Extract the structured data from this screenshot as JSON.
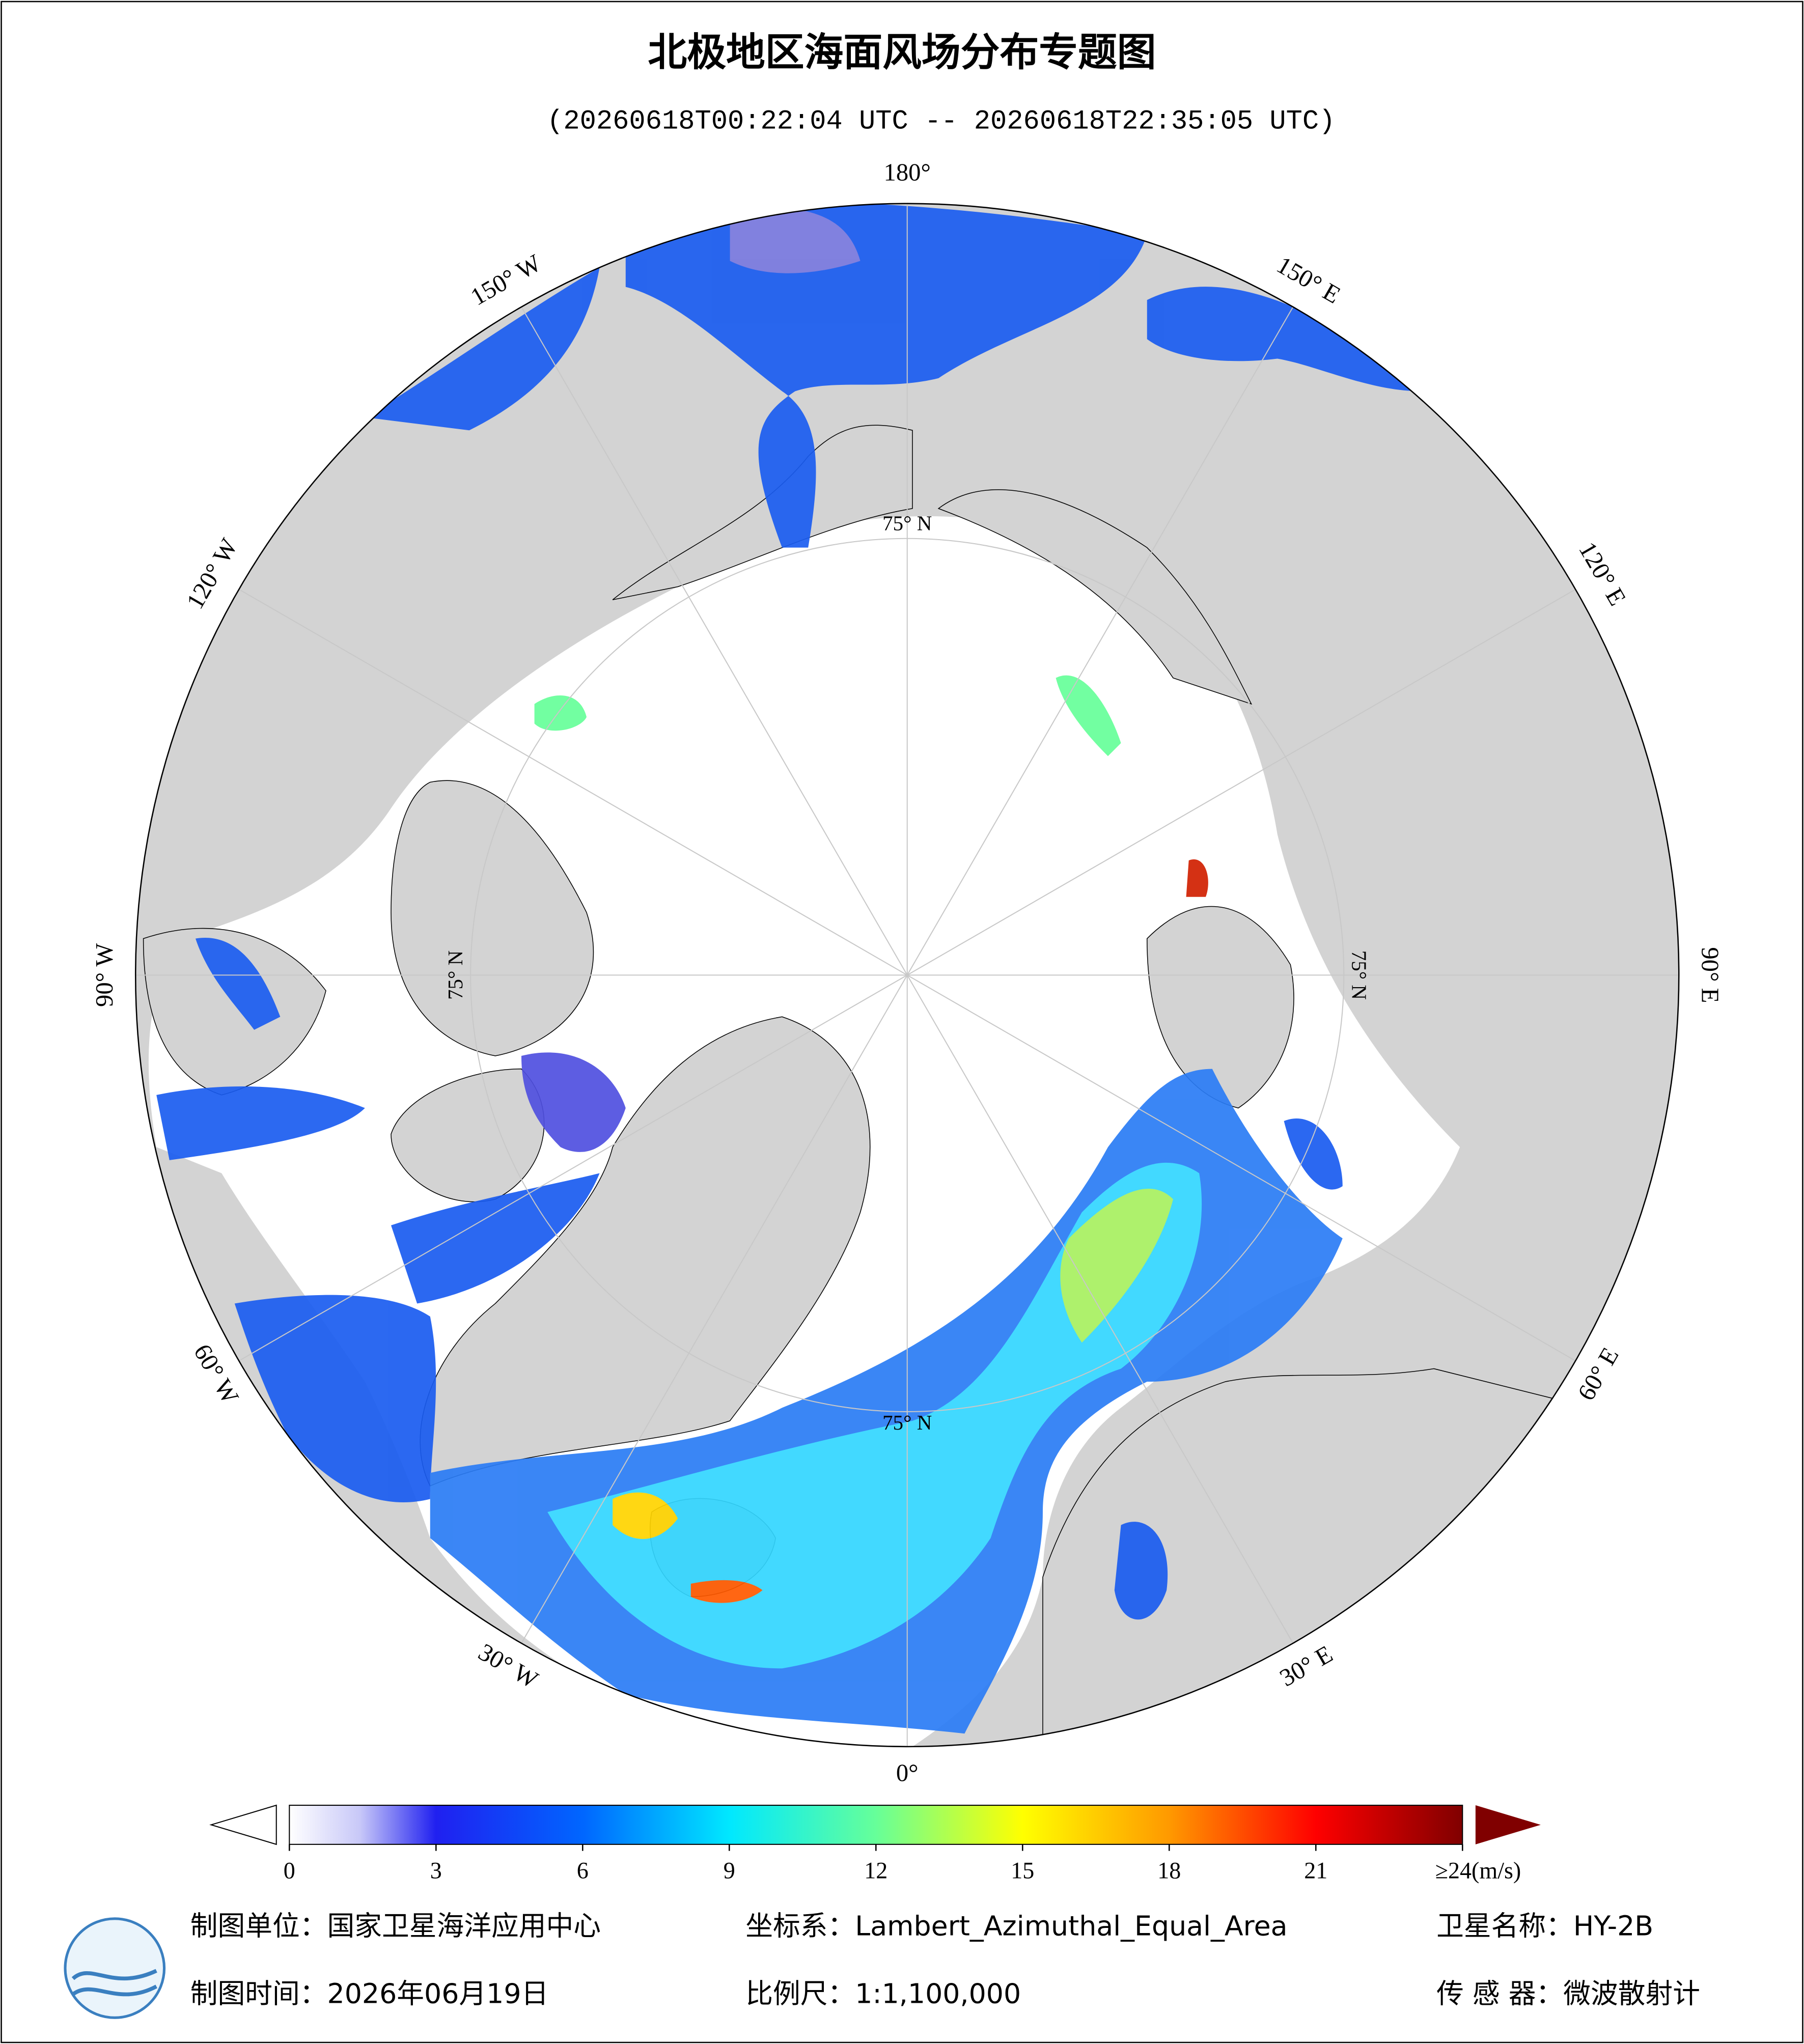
{
  "header": {
    "title": "北极地区海面风场分布专题图",
    "subtitle": "(20260618T00:22:04 UTC -- 20260618T22:35:05 UTC)"
  },
  "map": {
    "graticule_labels": [
      "180°",
      "150° E",
      "120° E",
      "90° E",
      "60° E",
      "30° E",
      "0°",
      "30° W",
      "60° W",
      "90° W",
      "120° W",
      "150° W"
    ],
    "latitude_labels": [
      "75° N",
      "75° N",
      "75° N",
      "75° N"
    ]
  },
  "colorbar": {
    "lim": [
      0,
      24
    ],
    "ticks": [
      0,
      3,
      6,
      9,
      12,
      15,
      18,
      21,
      {
        "value": 24,
        "label": "≥24(m/s)"
      }
    ]
  },
  "footer": {
    "unit": "制图单位：国家卫星海洋应用中心",
    "time": "制图时间：2026年06月19日",
    "crs": "坐标系：Lambert_Azimuthal_Equal_Area",
    "scale": "比例尺：1:1,100,000",
    "satellite": "卫星名称：HY-2B",
    "sensor": "传 感 器：微波散射计"
  }
}
